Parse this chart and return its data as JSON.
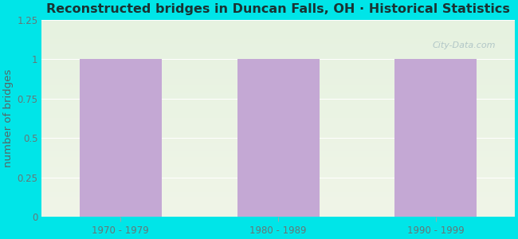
{
  "title": "Reconstructed bridges in Duncan Falls, OH · Historical Statistics",
  "categories": [
    "1970 - 1979",
    "1980 - 1989",
    "1990 - 1999"
  ],
  "values": [
    1,
    1,
    1
  ],
  "bar_color": "#c4a8d4",
  "ylabel": "number of bridges",
  "ylim": [
    0,
    1.25
  ],
  "ytick_values": [
    0,
    0.25,
    0.5,
    0.75,
    1,
    1.25
  ],
  "ytick_labels": [
    "0",
    "0.25",
    "0.5",
    "0.75",
    "1",
    "1.25"
  ],
  "background_outer": "#00e5e8",
  "background_plot_top": "#e6f2e0",
  "background_plot_bottom": "#f0f5e8",
  "title_fontsize": 11.5,
  "ylabel_fontsize": 9.5,
  "tick_fontsize": 8.5,
  "title_color": "#1a3333",
  "ylabel_color": "#556666",
  "tick_color": "#667777",
  "watermark": "City-Data.com",
  "bar_width": 0.52
}
